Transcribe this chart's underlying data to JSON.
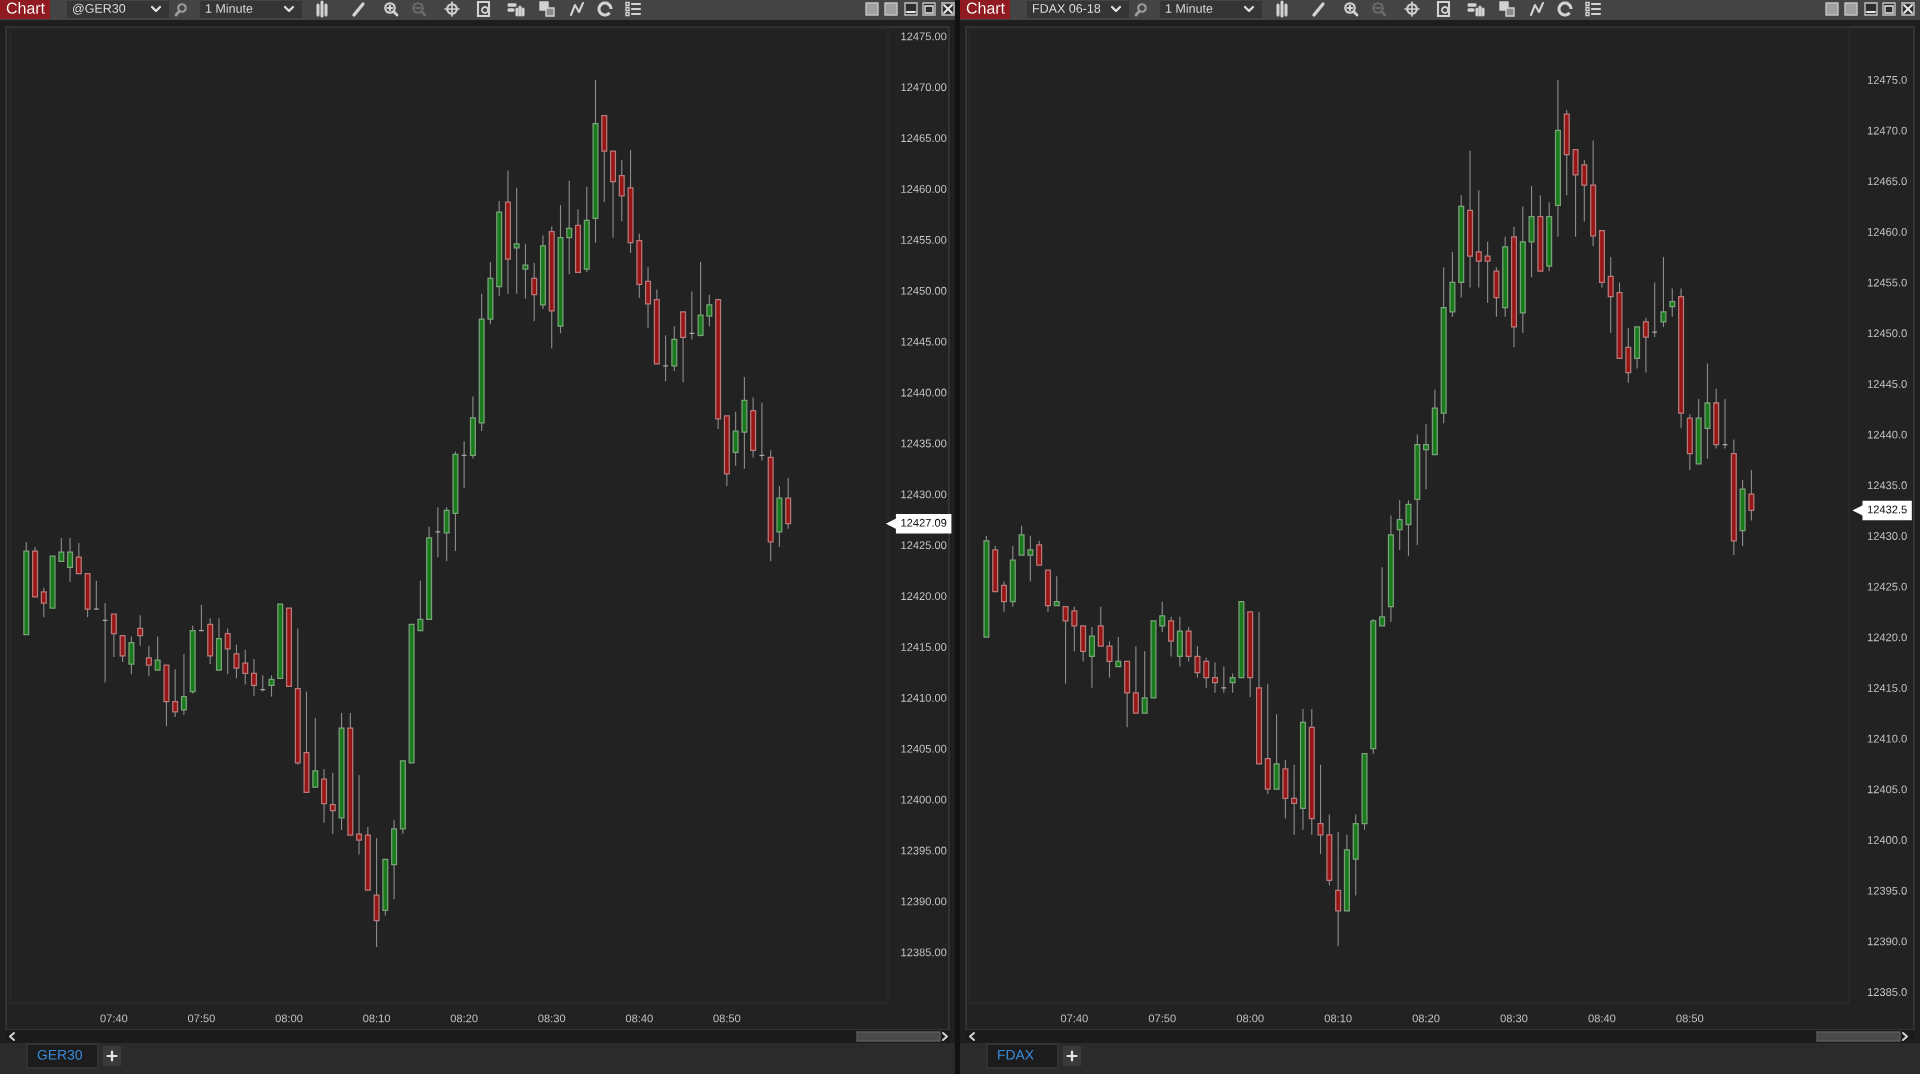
{
  "chart_data": [
    {
      "type": "candlestick",
      "title": "@GER30",
      "subtitle": "1 Minute",
      "annotations": [
        "Chart",
        "GER30",
        "12427.09"
      ],
      "x": [
        7.5,
        7.5167,
        7.5333,
        7.55,
        7.5667,
        7.5833,
        7.6,
        7.6167,
        7.6333,
        7.65,
        7.6667,
        7.6833,
        7.7,
        7.7167,
        7.7333,
        7.75,
        7.7667,
        7.7833,
        7.8,
        7.8167,
        7.8333,
        7.85,
        7.8667,
        7.8833,
        7.9,
        7.9167,
        7.9333,
        7.95,
        7.9667,
        7.9833,
        8.0,
        8.0167,
        8.0333,
        8.05,
        8.0667,
        8.0833,
        8.1,
        8.1167,
        8.1333,
        8.15,
        8.1667,
        8.1833,
        8.2,
        8.2167,
        8.2333,
        8.25,
        8.2667,
        8.2833,
        8.3,
        8.3167,
        8.3333,
        8.35,
        8.3667,
        8.3833,
        8.4,
        8.4167,
        8.4333,
        8.45,
        8.4667,
        8.4833,
        8.5,
        8.5167,
        8.5333,
        8.55,
        8.5667,
        8.5833,
        8.6,
        8.6167,
        8.6333,
        8.65,
        8.6667,
        8.6833,
        8.7,
        8.7167,
        8.7333,
        8.75,
        8.7667,
        8.7833,
        8.8,
        8.8167,
        8.8333,
        8.85,
        8.8667,
        8.8833,
        8.9,
        8.9167,
        8.9333,
        8.95
      ],
      "ohlc": [
        [
          12416.2,
          12425.3,
          12416.2,
          12424.4
        ],
        [
          12424.4,
          12424.8,
          12419.9,
          12419.9
        ],
        [
          12420.4,
          12420.8,
          12417.9,
          12419.3
        ],
        [
          12418.8,
          12423.9,
          12418.8,
          12423.9
        ],
        [
          12423.4,
          12425.7,
          12423.4,
          12424.3
        ],
        [
          12422.8,
          12425.7,
          12421.4,
          12424.3
        ],
        [
          12423.8,
          12425.2,
          12422.2,
          12422.2
        ],
        [
          12422.2,
          12422.2,
          12417.9,
          12418.7
        ],
        [
          12418.7,
          12421.5,
          12418.7,
          12418.7
        ],
        [
          12417.6,
          12419.3,
          12411.5,
          12417.6
        ],
        [
          12418.2,
          12418.2,
          12414.0,
          12416.3
        ],
        [
          12416.1,
          12416.1,
          12413.5,
          12414.1
        ],
        [
          12413.3,
          12416.0,
          12412.3,
          12415.4
        ],
        [
          12416.8,
          12418.1,
          12415.1,
          12416.1
        ],
        [
          12413.9,
          12415.1,
          12412.1,
          12413.2
        ],
        [
          12412.7,
          12416.0,
          12412.7,
          12413.7
        ],
        [
          12413.2,
          12413.2,
          12407.2,
          12409.6
        ],
        [
          12409.6,
          12412.8,
          12408.1,
          12408.6
        ],
        [
          12408.8,
          12414.3,
          12408.3,
          12410.1
        ],
        [
          12410.6,
          12417.1,
          12410.4,
          12416.6
        ],
        [
          12416.6,
          12419.1,
          12416.6,
          12416.6
        ],
        [
          12417.2,
          12417.8,
          12413.3,
          12414.1
        ],
        [
          12412.7,
          12417.8,
          12412.7,
          12415.8
        ],
        [
          12416.3,
          12416.8,
          12412.3,
          12414.8
        ],
        [
          12414.3,
          12415.2,
          12411.9,
          12412.9
        ],
        [
          12413.4,
          12414.7,
          12411.3,
          12412.4
        ],
        [
          12412.4,
          12413.8,
          12410.2,
          12411.2
        ],
        [
          12410.8,
          12412.2,
          12410.6,
          12410.8
        ],
        [
          12411.2,
          12412.2,
          12410.1,
          12411.8
        ],
        [
          12411.9,
          12419.2,
          12411.9,
          12419.2
        ],
        [
          12418.8,
          12418.8,
          12411.1,
          12411.1
        ],
        [
          12410.9,
          12416.8,
          12403.4,
          12403.6
        ],
        [
          12404.6,
          12410.6,
          12400.7,
          12400.7
        ],
        [
          12401.2,
          12408.0,
          12401.2,
          12402.8
        ],
        [
          12402.0,
          12403.0,
          12397.7,
          12399.6
        ],
        [
          12399.5,
          12402.6,
          12396.6,
          12398.9
        ],
        [
          12398.2,
          12408.5,
          12397.0,
          12407.0
        ],
        [
          12407.0,
          12408.5,
          12396.5,
          12396.5
        ],
        [
          12396.6,
          12402.4,
          12394.6,
          12396.0
        ],
        [
          12396.5,
          12397.3,
          12391.1,
          12391.1
        ],
        [
          12390.6,
          12396.2,
          12385.5,
          12388.1
        ],
        [
          12389.1,
          12394.1,
          12388.6,
          12394.1
        ],
        [
          12393.6,
          12398.0,
          12390.2,
          12397.1
        ],
        [
          12397.1,
          12403.8,
          12396.6,
          12403.8
        ],
        [
          12403.6,
          12417.2,
          12403.6,
          12417.2
        ],
        [
          12416.6,
          12421.5,
          12416.6,
          12417.7
        ],
        [
          12417.7,
          12426.8,
          12417.7,
          12425.7
        ],
        [
          12426.3,
          12428.7,
          12423.8,
          12426.3
        ],
        [
          12426.2,
          12428.7,
          12423.4,
          12428.4
        ],
        [
          12428.1,
          12434.2,
          12424.4,
          12433.9
        ],
        [
          12433.8,
          12435.2,
          12430.6,
          12433.8
        ],
        [
          12433.8,
          12439.6,
          12433.5,
          12437.5
        ],
        [
          12437.0,
          12449.7,
          12436.2,
          12447.2
        ],
        [
          12447.2,
          12452.8,
          12446.7,
          12451.2
        ],
        [
          12450.4,
          12458.8,
          12449.5,
          12457.7
        ],
        [
          12458.7,
          12461.8,
          12449.7,
          12453.1
        ],
        [
          12454.2,
          12460.1,
          12449.7,
          12454.6
        ],
        [
          12452.1,
          12454.6,
          12449.2,
          12452.5
        ],
        [
          12451.2,
          12452.7,
          12447.0,
          12449.6
        ],
        [
          12448.6,
          12455.4,
          12448.2,
          12454.4
        ],
        [
          12455.8,
          12456.3,
          12444.3,
          12448.0
        ],
        [
          12446.5,
          12458.4,
          12445.8,
          12455.2
        ],
        [
          12455.2,
          12460.8,
          12451.6,
          12456.1
        ],
        [
          12456.4,
          12458.0,
          12451.8,
          12451.8
        ],
        [
          12452.1,
          12460.2,
          12451.8,
          12456.9
        ],
        [
          12457.1,
          12470.7,
          12454.7,
          12466.4
        ],
        [
          12467.2,
          12467.2,
          12458.7,
          12463.7
        ],
        [
          12463.7,
          12463.7,
          12455.2,
          12460.7
        ],
        [
          12461.3,
          12462.8,
          12456.8,
          12459.3
        ],
        [
          12460.1,
          12463.8,
          12453.7,
          12454.7
        ],
        [
          12454.9,
          12455.6,
          12449.3,
          12450.6
        ],
        [
          12450.9,
          12452.3,
          12446.3,
          12448.7
        ],
        [
          12449.1,
          12450.1,
          12442.8,
          12442.8
        ],
        [
          12442.6,
          12445.6,
          12441.1,
          12442.6
        ],
        [
          12442.6,
          12446.5,
          12442.1,
          12445.2
        ],
        [
          12447.9,
          12447.9,
          12441.0,
          12445.4
        ],
        [
          12445.8,
          12449.9,
          12445.2,
          12445.8
        ],
        [
          12445.6,
          12452.8,
          12445.5,
          12447.6
        ],
        [
          12447.5,
          12449.6,
          12446.5,
          12448.6
        ],
        [
          12449.1,
          12449.1,
          12436.4,
          12437.4
        ],
        [
          12437.7,
          12437.7,
          12430.8,
          12432.0
        ],
        [
          12434.1,
          12438.1,
          12432.8,
          12436.2
        ],
        [
          12436.1,
          12441.5,
          12432.5,
          12439.2
        ],
        [
          12438.2,
          12439.5,
          12433.6,
          12434.3
        ],
        [
          12433.8,
          12439.0,
          12433.3,
          12433.8
        ],
        [
          12433.6,
          12434.3,
          12423.4,
          12425.3
        ],
        [
          12426.3,
          12430.8,
          12424.8,
          12429.6
        ],
        [
          12429.6,
          12431.6,
          12426.6,
          12427.09
        ]
      ],
      "xlim": [
        7.469,
        9.14
      ],
      "xticks": [
        {
          "value": 7.6667,
          "label": "07:40"
        },
        {
          "value": 7.8333,
          "label": "07:50"
        },
        {
          "value": 8.0,
          "label": "08:00"
        },
        {
          "value": 8.1667,
          "label": "08:10"
        },
        {
          "value": 8.3333,
          "label": "08:20"
        },
        {
          "value": 8.5,
          "label": "08:30"
        },
        {
          "value": 8.6667,
          "label": "08:40"
        },
        {
          "value": 8.8333,
          "label": "08:50"
        }
      ],
      "ylim": [
        12380.0,
        12475.8
      ],
      "yticks": [
        {
          "value": 12385,
          "label": "12385.00"
        },
        {
          "value": 12390,
          "label": "12390.00"
        },
        {
          "value": 12395,
          "label": "12395.00"
        },
        {
          "value": 12400,
          "label": "12400.00"
        },
        {
          "value": 12405,
          "label": "12405.00"
        },
        {
          "value": 12410,
          "label": "12410.00"
        },
        {
          "value": 12415,
          "label": "12415.00"
        },
        {
          "value": 12420,
          "label": "12420.00"
        },
        {
          "value": 12425,
          "label": "12425.00"
        },
        {
          "value": 12430,
          "label": "12430.00"
        },
        {
          "value": 12435,
          "label": "12435.00"
        },
        {
          "value": 12440,
          "label": "12440.00"
        },
        {
          "value": 12445,
          "label": "12445.00"
        },
        {
          "value": 12450,
          "label": "12450.00"
        },
        {
          "value": 12455,
          "label": "12455.00"
        },
        {
          "value": 12460,
          "label": "12460.00"
        },
        {
          "value": 12465,
          "label": "12465.00"
        },
        {
          "value": 12470,
          "label": "12470.00"
        },
        {
          "value": 12475,
          "label": "12475.00"
        }
      ]
    },
    {
      "type": "candlestick",
      "title": "FDAX 06-18",
      "subtitle": "1 Minute",
      "annotations": [
        "Chart",
        "FDAX",
        "12432.5"
      ],
      "x": [
        7.5,
        7.5167,
        7.5333,
        7.55,
        7.5667,
        7.5833,
        7.6,
        7.6167,
        7.6333,
        7.65,
        7.6667,
        7.6833,
        7.7,
        7.7167,
        7.7333,
        7.75,
        7.7667,
        7.7833,
        7.8,
        7.8167,
        7.8333,
        7.85,
        7.8667,
        7.8833,
        7.9,
        7.9167,
        7.9333,
        7.95,
        7.9667,
        7.9833,
        8.0,
        8.0167,
        8.0333,
        8.05,
        8.0667,
        8.0833,
        8.1,
        8.1167,
        8.1333,
        8.15,
        8.1667,
        8.1833,
        8.2,
        8.2167,
        8.2333,
        8.25,
        8.2667,
        8.2833,
        8.3,
        8.3167,
        8.3333,
        8.35,
        8.3667,
        8.3833,
        8.4,
        8.4167,
        8.4333,
        8.45,
        8.4667,
        8.4833,
        8.5,
        8.5167,
        8.5333,
        8.55,
        8.5667,
        8.5833,
        8.6,
        8.6167,
        8.6333,
        8.65,
        8.6667,
        8.6833,
        8.7,
        8.7167,
        8.7333,
        8.75,
        8.7667,
        8.7833,
        8.8,
        8.8167,
        8.8333,
        8.85,
        8.8667,
        8.8833,
        8.9,
        8.9167,
        8.9333,
        8.95
      ],
      "ohlc": [
        [
          12420.0,
          12430.0,
          12420.0,
          12429.5
        ],
        [
          12428.6,
          12429.0,
          12424.5,
          12424.5
        ],
        [
          12425.1,
          12425.5,
          12422.5,
          12423.5
        ],
        [
          12423.5,
          12429.0,
          12423.0,
          12427.6
        ],
        [
          12428.1,
          12431.0,
          12428.1,
          12430.1
        ],
        [
          12428.1,
          12430.0,
          12425.5,
          12428.6
        ],
        [
          12429.1,
          12429.5,
          12427.1,
          12427.1
        ],
        [
          12426.6,
          12426.6,
          12422.5,
          12423.1
        ],
        [
          12423.1,
          12426.0,
          12423.1,
          12423.5
        ],
        [
          12423.0,
          12423.0,
          12415.4,
          12421.6
        ],
        [
          12422.6,
          12423.0,
          12418.6,
          12421.1
        ],
        [
          12421.1,
          12421.1,
          12417.6,
          12418.6
        ],
        [
          12418.1,
          12421.0,
          12415.0,
          12420.1
        ],
        [
          12421.1,
          12423.0,
          12419.1,
          12419.1
        ],
        [
          12419.1,
          12419.6,
          12416.0,
          12417.6
        ],
        [
          12417.1,
          12420.0,
          12417.1,
          12417.6
        ],
        [
          12417.6,
          12417.6,
          12411.1,
          12414.5
        ],
        [
          12414.5,
          12419.1,
          12412.5,
          12412.5
        ],
        [
          12412.5,
          12418.6,
          12412.5,
          12414.0
        ],
        [
          12414.0,
          12421.6,
          12414.0,
          12421.6
        ],
        [
          12421.1,
          12423.5,
          12420.5,
          12422.1
        ],
        [
          12421.6,
          12422.0,
          12418.1,
          12419.6
        ],
        [
          12418.1,
          12422.0,
          12417.1,
          12420.6
        ],
        [
          12420.6,
          12421.0,
          12417.6,
          12418.1
        ],
        [
          12418.1,
          12419.1,
          12416.0,
          12416.5
        ],
        [
          12417.6,
          12418.0,
          12415.0,
          12416.0
        ],
        [
          12416.0,
          12417.5,
          12414.5,
          12415.5
        ],
        [
          12415.0,
          12417.1,
          12414.5,
          12415.0
        ],
        [
          12415.5,
          12416.4,
          12414.5,
          12416.0
        ],
        [
          12416.0,
          12423.5,
          12416.0,
          12423.5
        ],
        [
          12422.5,
          12422.5,
          12414.1,
          12416.0
        ],
        [
          12415.0,
          12422.5,
          12407.5,
          12407.5
        ],
        [
          12408.0,
          12415.4,
          12404.5,
          12405.0
        ],
        [
          12405.0,
          12412.4,
          12405.0,
          12407.5
        ],
        [
          12407.0,
          12407.9,
          12402.1,
          12404.1
        ],
        [
          12404.1,
          12407.4,
          12400.5,
          12403.6
        ],
        [
          12403.1,
          12412.9,
          12401.0,
          12411.6
        ],
        [
          12411.1,
          12412.9,
          12400.5,
          12402.1
        ],
        [
          12401.6,
          12407.4,
          12398.6,
          12400.5
        ],
        [
          12400.5,
          12402.5,
          12395.5,
          12396.0
        ],
        [
          12395.0,
          12400.8,
          12389.5,
          12393.0
        ],
        [
          12393.0,
          12400.5,
          12393.0,
          12399.0
        ],
        [
          12398.1,
          12402.5,
          12394.5,
          12401.6
        ],
        [
          12401.6,
          12408.5,
          12401.0,
          12408.5
        ],
        [
          12409.0,
          12421.8,
          12408.5,
          12421.6
        ],
        [
          12421.1,
          12426.9,
          12421.1,
          12422.0
        ],
        [
          12423.0,
          12432.0,
          12421.5,
          12430.1
        ],
        [
          12430.6,
          12433.5,
          12428.6,
          12431.6
        ],
        [
          12431.1,
          12433.5,
          12428.0,
          12433.1
        ],
        [
          12433.6,
          12440.0,
          12429.1,
          12439.0
        ],
        [
          12438.5,
          12441.0,
          12434.6,
          12439.0
        ],
        [
          12438.0,
          12444.4,
          12438.0,
          12442.6
        ],
        [
          12442.1,
          12456.5,
          12441.1,
          12452.5
        ],
        [
          12452.1,
          12458.0,
          12451.6,
          12455.0
        ],
        [
          12455.0,
          12463.6,
          12453.5,
          12462.5
        ],
        [
          12462.1,
          12468.0,
          12454.5,
          12457.6
        ],
        [
          12458.0,
          12464.1,
          12454.5,
          12457.1
        ],
        [
          12457.6,
          12459.0,
          12453.0,
          12457.1
        ],
        [
          12456.1,
          12456.5,
          12451.6,
          12453.5
        ],
        [
          12452.5,
          12459.5,
          12451.6,
          12458.5
        ],
        [
          12459.5,
          12460.5,
          12448.6,
          12450.6
        ],
        [
          12452.0,
          12462.5,
          12450.0,
          12459.0
        ],
        [
          12459.0,
          12464.5,
          12455.5,
          12461.5
        ],
        [
          12461.5,
          12463.6,
          12456.1,
          12456.1
        ],
        [
          12456.6,
          12462.9,
          12456.1,
          12461.5
        ],
        [
          12462.6,
          12475.0,
          12459.5,
          12470.0
        ],
        [
          12471.6,
          12472.0,
          12463.6,
          12467.6
        ],
        [
          12468.1,
          12468.1,
          12459.5,
          12465.6
        ],
        [
          12466.6,
          12467.1,
          12461.0,
          12464.6
        ],
        [
          12464.6,
          12469.0,
          12458.6,
          12459.6
        ],
        [
          12460.1,
          12460.1,
          12454.5,
          12455.0
        ],
        [
          12455.6,
          12457.5,
          12450.0,
          12453.6
        ],
        [
          12454.0,
          12455.0,
          12447.5,
          12447.5
        ],
        [
          12448.6,
          12450.5,
          12445.1,
          12446.1
        ],
        [
          12447.5,
          12450.6,
          12446.5,
          12450.6
        ],
        [
          12451.1,
          12451.5,
          12446.1,
          12449.6
        ],
        [
          12450.1,
          12455.0,
          12449.6,
          12450.1
        ],
        [
          12451.1,
          12457.5,
          12450.6,
          12452.1
        ],
        [
          12452.6,
          12454.4,
          12451.6,
          12453.1
        ],
        [
          12453.6,
          12454.4,
          12440.6,
          12442.1
        ],
        [
          12441.6,
          12442.0,
          12436.5,
          12438.1
        ],
        [
          12437.1,
          12443.5,
          12437.1,
          12441.6
        ],
        [
          12440.6,
          12447.0,
          12437.6,
          12443.1
        ],
        [
          12443.1,
          12444.5,
          12438.6,
          12439.0
        ],
        [
          12439.0,
          12443.5,
          12438.6,
          12439.0
        ],
        [
          12438.1,
          12439.5,
          12428.1,
          12429.5
        ],
        [
          12430.5,
          12435.5,
          12429.0,
          12434.6
        ],
        [
          12434.1,
          12436.5,
          12431.5,
          12432.5
        ]
      ],
      "xlim": [
        7.467,
        9.135
      ],
      "xticks": [
        {
          "value": 7.6667,
          "label": "07:40"
        },
        {
          "value": 7.8333,
          "label": "07:50"
        },
        {
          "value": 8.0,
          "label": "08:00"
        },
        {
          "value": 8.1667,
          "label": "08:10"
        },
        {
          "value": 8.3333,
          "label": "08:20"
        },
        {
          "value": 8.5,
          "label": "08:30"
        },
        {
          "value": 8.6667,
          "label": "08:40"
        },
        {
          "value": 8.8333,
          "label": "08:50"
        }
      ],
      "ylim": [
        12383.9,
        12480.1
      ],
      "yticks": [
        {
          "value": 12385,
          "label": "12385.0"
        },
        {
          "value": 12390,
          "label": "12390.0"
        },
        {
          "value": 12395,
          "label": "12395.0"
        },
        {
          "value": 12400,
          "label": "12400.0"
        },
        {
          "value": 12405,
          "label": "12405.0"
        },
        {
          "value": 12410,
          "label": "12410.0"
        },
        {
          "value": 12415,
          "label": "12415.0"
        },
        {
          "value": 12420,
          "label": "12420.0"
        },
        {
          "value": 12425,
          "label": "12425.0"
        },
        {
          "value": 12430,
          "label": "12430.0"
        },
        {
          "value": 12435,
          "label": "12435.0"
        },
        {
          "value": 12440,
          "label": "12440.0"
        },
        {
          "value": 12445,
          "label": "12445.0"
        },
        {
          "value": 12450,
          "label": "12450.0"
        },
        {
          "value": 12455,
          "label": "12455.0"
        },
        {
          "value": 12460,
          "label": "12460.0"
        },
        {
          "value": 12465,
          "label": "12465.0"
        },
        {
          "value": 12470,
          "label": "12470.0"
        },
        {
          "value": 12475,
          "label": "12475.0"
        }
      ]
    }
  ]
}
